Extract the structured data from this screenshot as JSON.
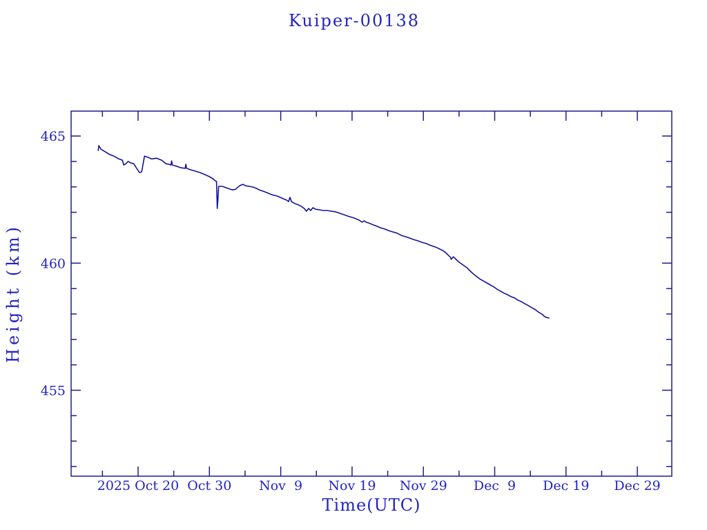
{
  "page": {
    "background": "#ffffff"
  },
  "chart_data": {
    "type": "line",
    "title": "Kuiper-00138",
    "xlabel": "Time(UTC)",
    "ylabel": "Height (km)",
    "legend": "none",
    "grid": false,
    "colors": {
      "text": "#2323c3",
      "axis": "#1b1b8e",
      "line": "#12129b",
      "background": "#ffffff"
    },
    "x_axis": {
      "unit": "days since 2025-10-20 00:00 UTC",
      "range_days": [
        -9.39,
        74.83
      ],
      "major_ticks": [
        {
          "day": 0,
          "label": "2025 Oct 20"
        },
        {
          "day": 10,
          "label": "Oct 30"
        },
        {
          "day": 20,
          "label": "Nov  9"
        },
        {
          "day": 30,
          "label": "Nov 19"
        },
        {
          "day": 40,
          "label": "Nov 29"
        },
        {
          "day": 50,
          "label": "Dec  9"
        },
        {
          "day": 60,
          "label": "Dec 19"
        },
        {
          "day": 70,
          "label": "Dec 29"
        }
      ],
      "minor_ticks_days": [
        -5,
        5,
        15,
        25,
        35,
        45,
        55,
        65
      ]
    },
    "y_axis": {
      "unit": "km",
      "range_km": [
        451.62,
        465.98
      ],
      "major_ticks": [
        {
          "km": 455,
          "label": "455"
        },
        {
          "km": 460,
          "label": "460"
        },
        {
          "km": 465,
          "label": "465"
        }
      ],
      "minor_ticks_km": [
        452,
        453,
        454,
        456,
        457,
        458,
        459,
        461,
        462,
        463,
        464
      ]
    },
    "series": [
      {
        "name": "Kuiper-00138",
        "points": [
          [
            -5.6,
            464.43
          ],
          [
            -5.5,
            464.62
          ],
          [
            -5.2,
            464.48
          ],
          [
            -4.6,
            464.38
          ],
          [
            -4.1,
            464.29
          ],
          [
            -3.4,
            464.21
          ],
          [
            -2.7,
            464.1
          ],
          [
            -2.2,
            464.05
          ],
          [
            -2.0,
            463.86
          ],
          [
            -1.7,
            463.91
          ],
          [
            -1.4,
            464.0
          ],
          [
            -1.0,
            463.94
          ],
          [
            -0.6,
            463.91
          ],
          [
            -0.2,
            463.73
          ],
          [
            0.2,
            463.56
          ],
          [
            0.5,
            463.59
          ],
          [
            0.9,
            464.21
          ],
          [
            1.4,
            464.16
          ],
          [
            1.9,
            464.1
          ],
          [
            2.6,
            464.13
          ],
          [
            3.3,
            464.05
          ],
          [
            3.9,
            463.91
          ],
          [
            4.3,
            463.89
          ],
          [
            4.6,
            463.86
          ],
          [
            4.7,
            464.02
          ],
          [
            4.8,
            463.86
          ],
          [
            5.4,
            463.81
          ],
          [
            6.0,
            463.75
          ],
          [
            6.6,
            463.73
          ],
          [
            6.7,
            463.89
          ],
          [
            6.8,
            463.73
          ],
          [
            7.4,
            463.67
          ],
          [
            8.0,
            463.62
          ],
          [
            8.7,
            463.56
          ],
          [
            9.4,
            463.48
          ],
          [
            10.0,
            463.4
          ],
          [
            10.5,
            463.32
          ],
          [
            10.8,
            463.24
          ],
          [
            11.0,
            463.21
          ],
          [
            11.1,
            462.15
          ],
          [
            11.2,
            462.53
          ],
          [
            11.3,
            463.02
          ],
          [
            11.8,
            463.02
          ],
          [
            12.3,
            462.97
          ],
          [
            12.9,
            462.91
          ],
          [
            13.3,
            462.88
          ],
          [
            13.7,
            462.91
          ],
          [
            14.0,
            462.99
          ],
          [
            14.4,
            463.07
          ],
          [
            14.7,
            463.1
          ],
          [
            15.1,
            463.04
          ],
          [
            15.6,
            463.02
          ],
          [
            16.1,
            462.99
          ],
          [
            16.6,
            462.94
          ],
          [
            17.0,
            462.88
          ],
          [
            17.5,
            462.83
          ],
          [
            18.0,
            462.78
          ],
          [
            18.5,
            462.72
          ],
          [
            19.0,
            462.67
          ],
          [
            19.5,
            462.64
          ],
          [
            19.9,
            462.59
          ],
          [
            20.4,
            462.53
          ],
          [
            20.8,
            462.48
          ],
          [
            21.1,
            462.42
          ],
          [
            21.3,
            462.59
          ],
          [
            21.5,
            462.42
          ],
          [
            22.0,
            462.34
          ],
          [
            22.5,
            462.29
          ],
          [
            22.9,
            462.23
          ],
          [
            23.3,
            462.15
          ],
          [
            23.6,
            462.04
          ],
          [
            23.9,
            462.15
          ],
          [
            24.2,
            462.07
          ],
          [
            24.5,
            462.18
          ],
          [
            24.9,
            462.12
          ],
          [
            25.4,
            462.1
          ],
          [
            25.9,
            462.07
          ],
          [
            26.5,
            462.07
          ],
          [
            27.1,
            462.04
          ],
          [
            27.7,
            462.02
          ],
          [
            28.3,
            461.96
          ],
          [
            28.8,
            461.91
          ],
          [
            29.4,
            461.85
          ],
          [
            30.0,
            461.8
          ],
          [
            30.5,
            461.75
          ],
          [
            31.0,
            461.69
          ],
          [
            31.4,
            461.61
          ],
          [
            31.7,
            461.66
          ],
          [
            32.0,
            461.61
          ],
          [
            32.5,
            461.56
          ],
          [
            33.0,
            461.5
          ],
          [
            33.5,
            461.45
          ],
          [
            34.0,
            461.39
          ],
          [
            34.6,
            461.34
          ],
          [
            35.1,
            461.28
          ],
          [
            35.7,
            461.23
          ],
          [
            36.3,
            461.18
          ],
          [
            36.9,
            461.09
          ],
          [
            37.5,
            461.04
          ],
          [
            38.0,
            460.99
          ],
          [
            38.6,
            460.93
          ],
          [
            39.2,
            460.88
          ],
          [
            39.8,
            460.82
          ],
          [
            40.4,
            460.77
          ],
          [
            40.9,
            460.71
          ],
          [
            41.4,
            460.66
          ],
          [
            41.9,
            460.61
          ],
          [
            42.3,
            460.55
          ],
          [
            42.7,
            460.5
          ],
          [
            43.1,
            460.42
          ],
          [
            43.5,
            460.31
          ],
          [
            43.8,
            460.23
          ],
          [
            43.9,
            460.15
          ],
          [
            44.2,
            460.25
          ],
          [
            44.5,
            460.17
          ],
          [
            44.9,
            460.06
          ],
          [
            45.3,
            459.98
          ],
          [
            45.7,
            459.9
          ],
          [
            46.1,
            459.82
          ],
          [
            46.5,
            459.71
          ],
          [
            46.9,
            459.6
          ],
          [
            47.4,
            459.49
          ],
          [
            47.9,
            459.38
          ],
          [
            48.4,
            459.3
          ],
          [
            48.9,
            459.22
          ],
          [
            49.4,
            459.14
          ],
          [
            49.9,
            459.06
          ],
          [
            50.3,
            458.98
          ],
          [
            50.8,
            458.9
          ],
          [
            51.3,
            458.82
          ],
          [
            51.8,
            458.76
          ],
          [
            52.3,
            458.68
          ],
          [
            52.8,
            458.63
          ],
          [
            53.2,
            458.55
          ],
          [
            53.7,
            458.49
          ],
          [
            54.2,
            458.41
          ],
          [
            54.7,
            458.33
          ],
          [
            55.2,
            458.25
          ],
          [
            55.7,
            458.17
          ],
          [
            56.1,
            458.08
          ],
          [
            56.4,
            458.03
          ],
          [
            56.7,
            457.98
          ],
          [
            56.9,
            457.92
          ],
          [
            57.2,
            457.87
          ],
          [
            57.6,
            457.84
          ]
        ]
      }
    ]
  }
}
